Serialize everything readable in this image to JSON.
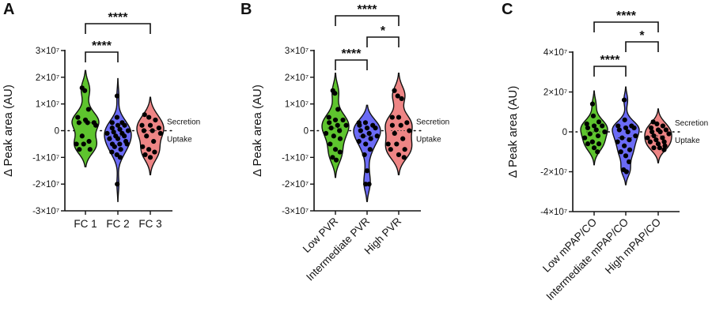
{
  "chart_data": [
    {
      "type": "violin",
      "panel_label": "A",
      "ylabel": "Δ Peak area (AU)",
      "ylim": [
        -30000000,
        30000000
      ],
      "yticks": [
        30000000,
        20000000,
        10000000,
        0,
        -10000000,
        -20000000,
        -30000000
      ],
      "ytick_labels": [
        "3×10⁷",
        "2×10⁷",
        "1×10⁷",
        "0",
        "-1×10⁷",
        "-2×10⁷",
        "-3×10⁷"
      ],
      "categories": [
        "FC 1",
        "FC 2",
        "FC 3"
      ],
      "xlabel_rotation": 0,
      "zero_line": {
        "style": "dotted",
        "above_label": "Secretion",
        "below_label": "Uptake"
      },
      "series": [
        {
          "category": "FC 1",
          "color": "#5ec42e",
          "values": [
            16000000,
            15000000,
            8000000,
            5000000,
            4000000,
            3000000,
            3000000,
            3000000,
            2000000,
            -2000000,
            -4000000,
            -5000000,
            -5000000,
            -7000000,
            -7000000
          ]
        },
        {
          "category": "FC 2",
          "color": "#6b6bf5",
          "values": [
            13000000,
            5000000,
            3000000,
            3000000,
            2000000,
            2000000,
            1000000,
            500000,
            0,
            -500000,
            -1000000,
            -1000000,
            -2000000,
            -2000000,
            -3000000,
            -3000000,
            -4000000,
            -5000000,
            -5000000,
            -5000000,
            -6000000,
            -7000000,
            -8000000,
            -9000000,
            -10000000,
            -20000000
          ]
        },
        {
          "category": "FC 3",
          "color": "#ee8585",
          "values": [
            6000000,
            5000000,
            4000000,
            2000000,
            2000000,
            1000000,
            0,
            0,
            -1000000,
            -2000000,
            -4000000,
            -6000000,
            -7000000,
            -8000000,
            -9000000,
            -10000000
          ]
        }
      ],
      "comparisons": [
        {
          "from": "FC 1",
          "to": "FC 2",
          "label": "****"
        },
        {
          "from": "FC 1",
          "to": "FC 3",
          "label": "****"
        }
      ]
    },
    {
      "type": "violin",
      "panel_label": "B",
      "ylabel": "Δ Peak area (AU)",
      "ylim": [
        -30000000,
        30000000
      ],
      "yticks": [
        30000000,
        20000000,
        10000000,
        0,
        -10000000,
        -20000000,
        -30000000
      ],
      "ytick_labels": [
        "3×10⁷",
        "2×10⁷",
        "1×10⁷",
        "0",
        "-1×10⁷",
        "-2×10⁷",
        "-3×10⁷"
      ],
      "categories": [
        "Low PVR",
        "Intermediate PVR",
        "High PVR"
      ],
      "xlabel_rotation": -45,
      "zero_line": {
        "style": "dotted",
        "above_label": "Secretion",
        "below_label": "Uptake"
      },
      "series": [
        {
          "category": "Low PVR",
          "color": "#5ec42e",
          "values": [
            15000000,
            14000000,
            8000000,
            5000000,
            4000000,
            4000000,
            3000000,
            2000000,
            2000000,
            1000000,
            0,
            -1000000,
            -2000000,
            -3000000,
            -5000000,
            -7000000,
            -8000000,
            -10000000,
            -11000000
          ]
        },
        {
          "category": "Intermediate PVR",
          "color": "#6b6bf5",
          "values": [
            3000000,
            3000000,
            2000000,
            2000000,
            1000000,
            1000000,
            0,
            -1000000,
            -2000000,
            -2000000,
            -3000000,
            -4000000,
            -5000000,
            -7000000,
            -9000000,
            -15000000,
            -20000000,
            -20000000
          ]
        },
        {
          "category": "High PVR",
          "color": "#ee8585",
          "values": [
            15000000,
            13000000,
            12000000,
            5000000,
            5000000,
            3000000,
            2000000,
            2000000,
            0,
            -1000000,
            -3000000,
            -5000000,
            -5000000,
            -7000000,
            -7000000,
            -9000000,
            -10000000
          ]
        }
      ],
      "comparisons": [
        {
          "from": "Low PVR",
          "to": "Intermediate PVR",
          "label": "****"
        },
        {
          "from": "Intermediate PVR",
          "to": "High PVR",
          "label": "*"
        },
        {
          "from": "Low PVR",
          "to": "High PVR",
          "label": "****"
        }
      ]
    },
    {
      "type": "violin",
      "panel_label": "C",
      "ylabel": "Δ Peak area (AU)",
      "ylim": [
        -40000000,
        40000000
      ],
      "yticks": [
        40000000,
        20000000,
        0,
        -20000000,
        -40000000
      ],
      "ytick_labels": [
        "4×10⁷",
        "2×10⁷",
        "0",
        "-2×10⁷",
        "-4×10⁷"
      ],
      "categories": [
        "Low mPAP/CO",
        "Intermediate mPAP/CO",
        "High mPAP/CO"
      ],
      "xlabel_rotation": -45,
      "zero_line": {
        "style": "dotted",
        "above_label": "Secretion",
        "below_label": "Uptake"
      },
      "series": [
        {
          "category": "Low mPAP/CO",
          "color": "#5ec42e",
          "values": [
            14000000,
            8000000,
            5000000,
            4000000,
            3000000,
            3000000,
            2000000,
            1000000,
            0,
            -1000000,
            -2000000,
            -3000000,
            -5000000,
            -6000000,
            -6000000,
            -8000000,
            -10000000
          ]
        },
        {
          "category": "Intermediate mPAP/CO",
          "color": "#6b6bf5",
          "values": [
            16000000,
            6000000,
            3000000,
            3000000,
            2000000,
            2000000,
            1000000,
            0,
            -2000000,
            -3000000,
            -4000000,
            -5000000,
            -7000000,
            -9000000,
            -10000000,
            -12000000,
            -15000000,
            -19000000,
            -20000000
          ]
        },
        {
          "category": "High mPAP/CO",
          "color": "#ee8585",
          "values": [
            5000000,
            4000000,
            3000000,
            2000000,
            1000000,
            1000000,
            0,
            0,
            -1000000,
            -2000000,
            -3000000,
            -3000000,
            -4000000,
            -5000000,
            -5000000,
            -6000000,
            -7000000,
            -8000000,
            -8000000,
            -9000000
          ]
        }
      ],
      "comparisons": [
        {
          "from": "Low mPAP/CO",
          "to": "Intermediate mPAP/CO",
          "label": "****"
        },
        {
          "from": "Intermediate mPAP/CO",
          "to": "High mPAP/CO",
          "label": "*"
        },
        {
          "from": "Low mPAP/CO",
          "to": "High mPAP/CO",
          "label": "****"
        }
      ]
    }
  ]
}
